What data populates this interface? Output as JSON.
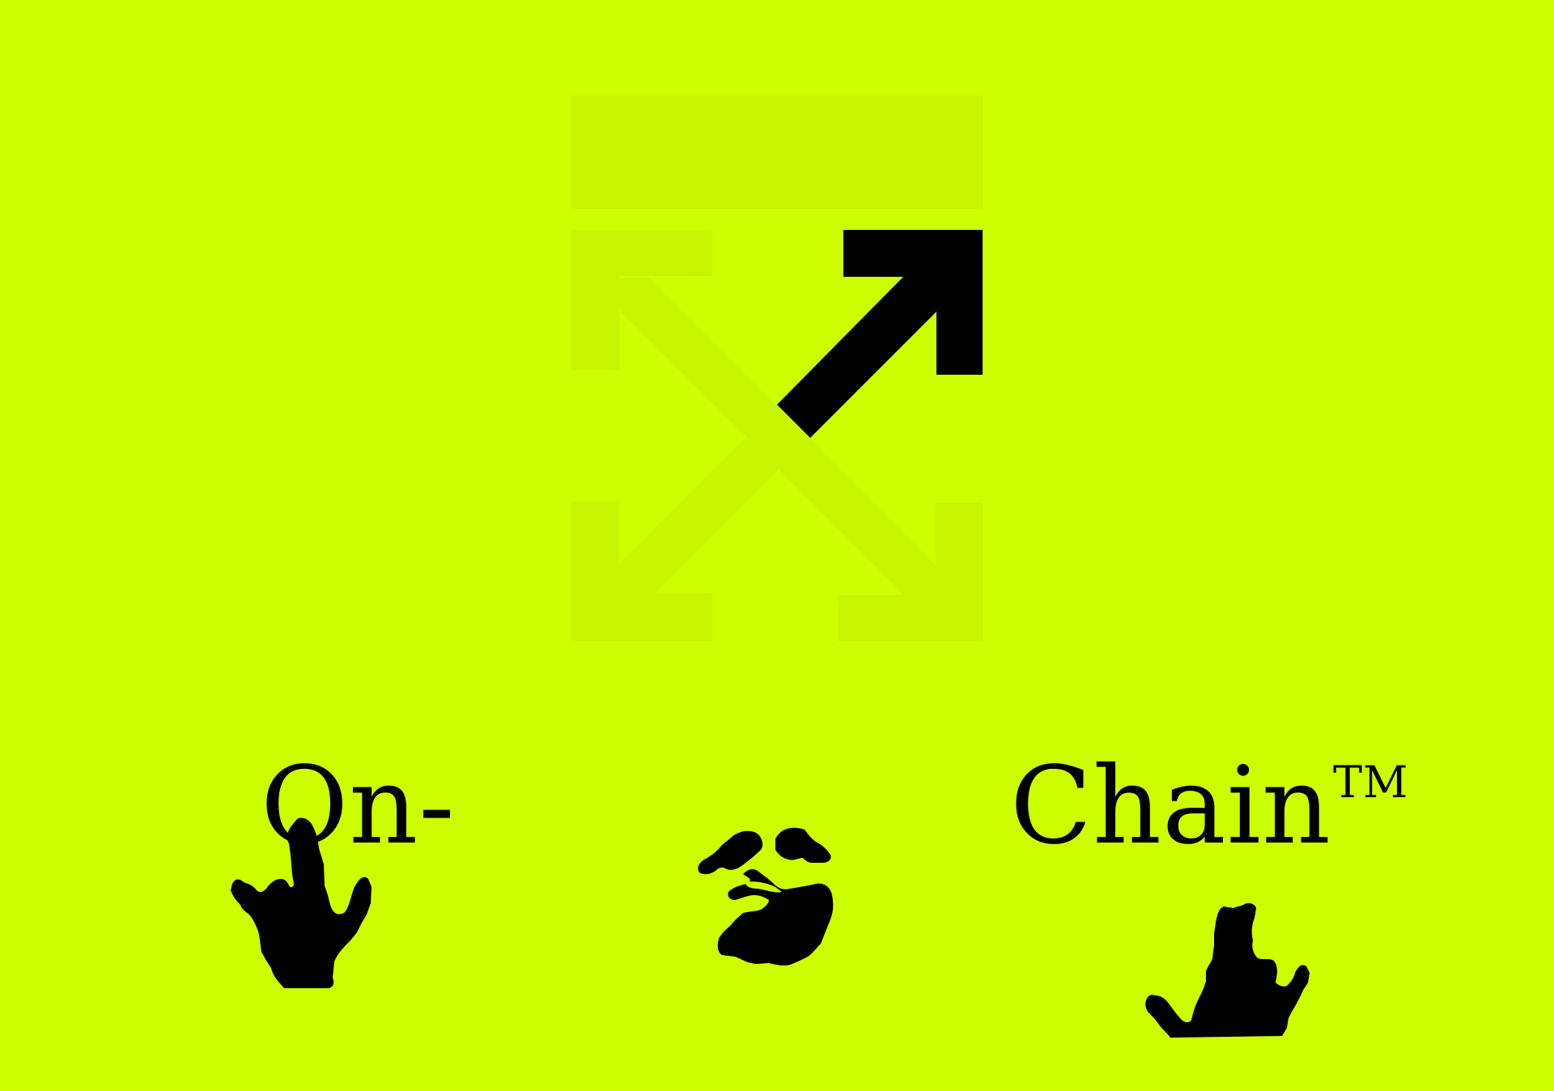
{
  "colors": {
    "background": "#ccff00",
    "ghost_logo": "#c7f500",
    "ink": "#000000"
  },
  "logo": {
    "name": "cross-arrows-logo",
    "highlighted_arrow": "top-right"
  },
  "text": {
    "word_left": "On-",
    "word_right": "Chain",
    "trademark": "TM"
  },
  "icons": {
    "left_hand": "pointing-hand-icon",
    "center_hand": "pinching-hand-icon",
    "right_hand": "raised-hand-icon"
  }
}
